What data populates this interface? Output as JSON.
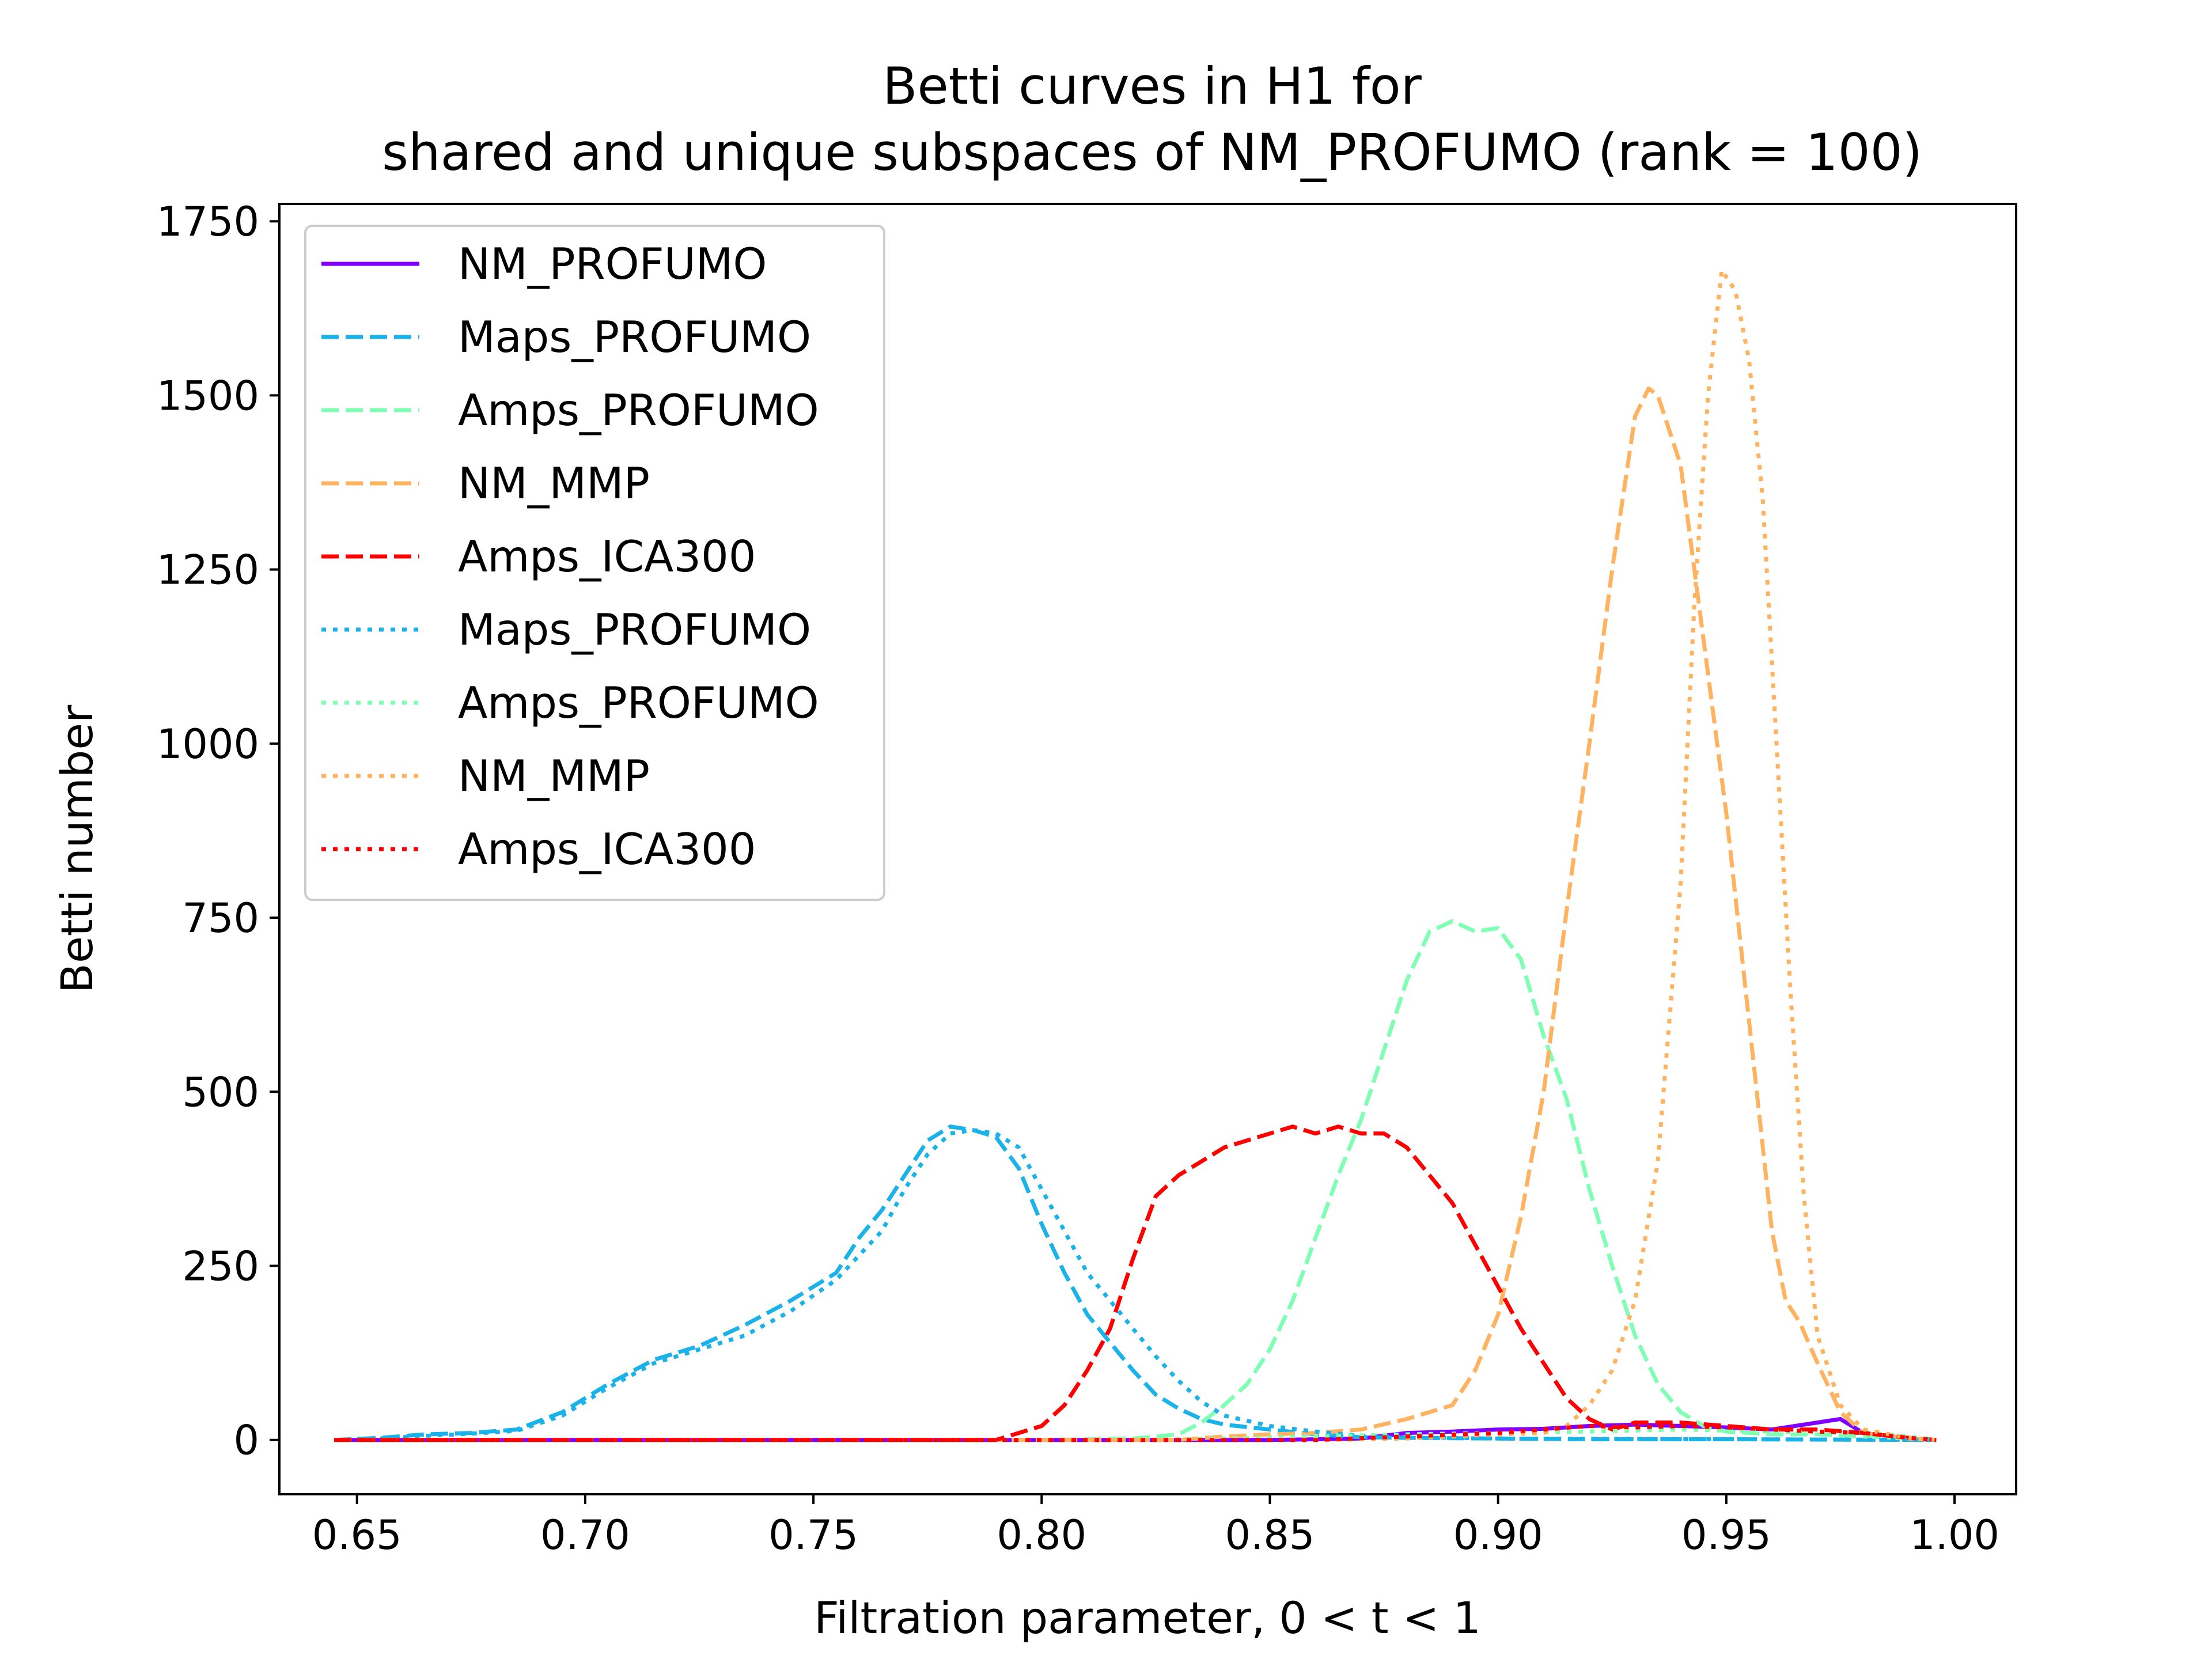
{
  "chart_data": {
    "type": "line",
    "title": "Betti curves in H1 for",
    "subtitle": "shared and unique subspaces of NM_PROFUMO (rank = 100)",
    "xlabel": "Filtration parameter, 0 < t < 1",
    "ylabel": "Betti number",
    "xlim": [
      0.633,
      1.0135
    ],
    "ylim": [
      -78,
      1775
    ],
    "xticks": [
      0.65,
      0.7,
      0.75,
      0.8,
      0.85,
      0.9,
      0.95,
      1.0
    ],
    "xtick_labels": [
      "0.65",
      "0.70",
      "0.75",
      "0.80",
      "0.85",
      "0.90",
      "0.95",
      "1.00"
    ],
    "yticks": [
      0,
      250,
      500,
      750,
      1000,
      1250,
      1500,
      1750
    ],
    "ytick_labels": [
      "0",
      "250",
      "500",
      "750",
      "1000",
      "1250",
      "1500",
      "1750"
    ],
    "grid": false,
    "legend_position": "top-left",
    "series": [
      {
        "name": "NM_PROFUMO",
        "color": "#8000ff",
        "dash": "solid",
        "points": [
          [
            0.645,
            0
          ],
          [
            0.7,
            0
          ],
          [
            0.75,
            0
          ],
          [
            0.8,
            0
          ],
          [
            0.85,
            0
          ],
          [
            0.87,
            2
          ],
          [
            0.88,
            10
          ],
          [
            0.89,
            12
          ],
          [
            0.9,
            15
          ],
          [
            0.91,
            16
          ],
          [
            0.92,
            20
          ],
          [
            0.93,
            22
          ],
          [
            0.94,
            20
          ],
          [
            0.95,
            18
          ],
          [
            0.96,
            15
          ],
          [
            0.97,
            25
          ],
          [
            0.975,
            30
          ],
          [
            0.98,
            10
          ],
          [
            0.99,
            2
          ],
          [
            0.996,
            0
          ]
        ]
      },
      {
        "name": "Maps_PROFUMO",
        "color": "#1ab2e8",
        "dash": "dashed",
        "points": [
          [
            0.645,
            0
          ],
          [
            0.655,
            3
          ],
          [
            0.665,
            8
          ],
          [
            0.675,
            10
          ],
          [
            0.685,
            15
          ],
          [
            0.695,
            40
          ],
          [
            0.705,
            80
          ],
          [
            0.715,
            115
          ],
          [
            0.725,
            135
          ],
          [
            0.735,
            165
          ],
          [
            0.745,
            200
          ],
          [
            0.755,
            240
          ],
          [
            0.76,
            290
          ],
          [
            0.765,
            330
          ],
          [
            0.77,
            380
          ],
          [
            0.775,
            430
          ],
          [
            0.78,
            450
          ],
          [
            0.785,
            445
          ],
          [
            0.79,
            435
          ],
          [
            0.795,
            390
          ],
          [
            0.8,
            310
          ],
          [
            0.805,
            240
          ],
          [
            0.81,
            180
          ],
          [
            0.815,
            140
          ],
          [
            0.82,
            100
          ],
          [
            0.825,
            65
          ],
          [
            0.83,
            45
          ],
          [
            0.835,
            30
          ],
          [
            0.84,
            22
          ],
          [
            0.85,
            15
          ],
          [
            0.86,
            8
          ],
          [
            0.87,
            4
          ],
          [
            0.88,
            3
          ],
          [
            0.9,
            2
          ],
          [
            0.92,
            1
          ],
          [
            0.95,
            1
          ],
          [
            0.996,
            0
          ]
        ]
      },
      {
        "name": "Amps_PROFUMO",
        "color": "#80ffb4",
        "dash": "dashed",
        "points": [
          [
            0.645,
            0
          ],
          [
            0.8,
            0
          ],
          [
            0.82,
            2
          ],
          [
            0.83,
            8
          ],
          [
            0.835,
            25
          ],
          [
            0.84,
            50
          ],
          [
            0.845,
            80
          ],
          [
            0.85,
            130
          ],
          [
            0.855,
            200
          ],
          [
            0.86,
            290
          ],
          [
            0.865,
            380
          ],
          [
            0.87,
            460
          ],
          [
            0.875,
            560
          ],
          [
            0.88,
            660
          ],
          [
            0.885,
            730
          ],
          [
            0.89,
            745
          ],
          [
            0.895,
            730
          ],
          [
            0.9,
            735
          ],
          [
            0.905,
            690
          ],
          [
            0.91,
            580
          ],
          [
            0.915,
            490
          ],
          [
            0.92,
            360
          ],
          [
            0.925,
            250
          ],
          [
            0.93,
            150
          ],
          [
            0.935,
            80
          ],
          [
            0.94,
            40
          ],
          [
            0.945,
            20
          ],
          [
            0.95,
            12
          ],
          [
            0.96,
            8
          ],
          [
            0.97,
            8
          ],
          [
            0.98,
            5
          ],
          [
            0.99,
            2
          ],
          [
            0.996,
            0
          ]
        ]
      },
      {
        "name": "NM_MMP",
        "color": "#ffb360",
        "dash": "dashed",
        "points": [
          [
            0.645,
            0
          ],
          [
            0.83,
            0
          ],
          [
            0.84,
            5
          ],
          [
            0.85,
            8
          ],
          [
            0.86,
            10
          ],
          [
            0.87,
            15
          ],
          [
            0.88,
            30
          ],
          [
            0.885,
            40
          ],
          [
            0.89,
            50
          ],
          [
            0.895,
            100
          ],
          [
            0.9,
            180
          ],
          [
            0.905,
            320
          ],
          [
            0.91,
            500
          ],
          [
            0.915,
            760
          ],
          [
            0.92,
            1000
          ],
          [
            0.925,
            1250
          ],
          [
            0.93,
            1470
          ],
          [
            0.933,
            1510
          ],
          [
            0.935,
            1500
          ],
          [
            0.94,
            1400
          ],
          [
            0.945,
            1150
          ],
          [
            0.95,
            900
          ],
          [
            0.955,
            600
          ],
          [
            0.96,
            300
          ],
          [
            0.963,
            200
          ],
          [
            0.966,
            170
          ],
          [
            0.97,
            110
          ],
          [
            0.975,
            40
          ],
          [
            0.98,
            10
          ],
          [
            0.99,
            2
          ],
          [
            0.996,
            0
          ]
        ]
      },
      {
        "name": "Amps_ICA300",
        "color": "#ff0000",
        "dash": "dashed",
        "points": [
          [
            0.645,
            0
          ],
          [
            0.79,
            0
          ],
          [
            0.8,
            20
          ],
          [
            0.805,
            50
          ],
          [
            0.81,
            100
          ],
          [
            0.815,
            160
          ],
          [
            0.82,
            260
          ],
          [
            0.825,
            350
          ],
          [
            0.83,
            380
          ],
          [
            0.835,
            400
          ],
          [
            0.84,
            420
          ],
          [
            0.85,
            440
          ],
          [
            0.855,
            450
          ],
          [
            0.86,
            440
          ],
          [
            0.865,
            450
          ],
          [
            0.87,
            440
          ],
          [
            0.875,
            440
          ],
          [
            0.88,
            420
          ],
          [
            0.885,
            380
          ],
          [
            0.89,
            340
          ],
          [
            0.895,
            280
          ],
          [
            0.9,
            220
          ],
          [
            0.905,
            160
          ],
          [
            0.91,
            110
          ],
          [
            0.915,
            60
          ],
          [
            0.92,
            30
          ],
          [
            0.925,
            15
          ],
          [
            0.93,
            25
          ],
          [
            0.94,
            25
          ],
          [
            0.95,
            20
          ],
          [
            0.96,
            15
          ],
          [
            0.97,
            15
          ],
          [
            0.98,
            10
          ],
          [
            0.99,
            3
          ],
          [
            0.996,
            0
          ]
        ]
      },
      {
        "name": "Maps_PROFUMO",
        "color": "#1ab2e8",
        "dash": "dotted",
        "points": [
          [
            0.645,
            0
          ],
          [
            0.655,
            2
          ],
          [
            0.665,
            6
          ],
          [
            0.675,
            9
          ],
          [
            0.685,
            13
          ],
          [
            0.695,
            35
          ],
          [
            0.705,
            75
          ],
          [
            0.715,
            110
          ],
          [
            0.725,
            130
          ],
          [
            0.735,
            150
          ],
          [
            0.745,
            185
          ],
          [
            0.755,
            230
          ],
          [
            0.765,
            300
          ],
          [
            0.77,
            360
          ],
          [
            0.775,
            410
          ],
          [
            0.78,
            440
          ],
          [
            0.785,
            445
          ],
          [
            0.79,
            440
          ],
          [
            0.795,
            420
          ],
          [
            0.8,
            360
          ],
          [
            0.805,
            300
          ],
          [
            0.81,
            240
          ],
          [
            0.815,
            200
          ],
          [
            0.82,
            160
          ],
          [
            0.825,
            120
          ],
          [
            0.83,
            85
          ],
          [
            0.835,
            55
          ],
          [
            0.84,
            35
          ],
          [
            0.85,
            20
          ],
          [
            0.86,
            12
          ],
          [
            0.87,
            6
          ],
          [
            0.88,
            4
          ],
          [
            0.9,
            2
          ],
          [
            0.95,
            1
          ],
          [
            0.996,
            0
          ]
        ]
      },
      {
        "name": "Amps_PROFUMO",
        "color": "#80ffb4",
        "dash": "dotted",
        "points": [
          [
            0.645,
            0
          ],
          [
            0.82,
            0
          ],
          [
            0.84,
            2
          ],
          [
            0.86,
            5
          ],
          [
            0.88,
            8
          ],
          [
            0.9,
            10
          ],
          [
            0.92,
            12
          ],
          [
            0.94,
            15
          ],
          [
            0.96,
            12
          ],
          [
            0.98,
            10
          ],
          [
            0.99,
            5
          ],
          [
            0.996,
            0
          ]
        ]
      },
      {
        "name": "NM_MMP",
        "color": "#ffb360",
        "dash": "dotted",
        "points": [
          [
            0.645,
            0
          ],
          [
            0.86,
            0
          ],
          [
            0.88,
            2
          ],
          [
            0.89,
            5
          ],
          [
            0.9,
            8
          ],
          [
            0.91,
            10
          ],
          [
            0.915,
            20
          ],
          [
            0.92,
            50
          ],
          [
            0.925,
            100
          ],
          [
            0.93,
            200
          ],
          [
            0.935,
            400
          ],
          [
            0.94,
            800
          ],
          [
            0.943,
            1200
          ],
          [
            0.946,
            1500
          ],
          [
            0.949,
            1680
          ],
          [
            0.952,
            1650
          ],
          [
            0.955,
            1550
          ],
          [
            0.958,
            1350
          ],
          [
            0.961,
            1000
          ],
          [
            0.964,
            650
          ],
          [
            0.967,
            350
          ],
          [
            0.97,
            150
          ],
          [
            0.975,
            50
          ],
          [
            0.98,
            15
          ],
          [
            0.99,
            3
          ],
          [
            0.996,
            0
          ]
        ]
      },
      {
        "name": "Amps_ICA300",
        "color": "#ff0000",
        "dash": "dotted",
        "points": [
          [
            0.645,
            0
          ],
          [
            0.86,
            0
          ],
          [
            0.88,
            5
          ],
          [
            0.9,
            10
          ],
          [
            0.91,
            15
          ],
          [
            0.92,
            20
          ],
          [
            0.93,
            18
          ],
          [
            0.94,
            20
          ],
          [
            0.95,
            18
          ],
          [
            0.96,
            15
          ],
          [
            0.97,
            12
          ],
          [
            0.98,
            10
          ],
          [
            0.99,
            3
          ],
          [
            0.996,
            0
          ]
        ]
      }
    ]
  }
}
